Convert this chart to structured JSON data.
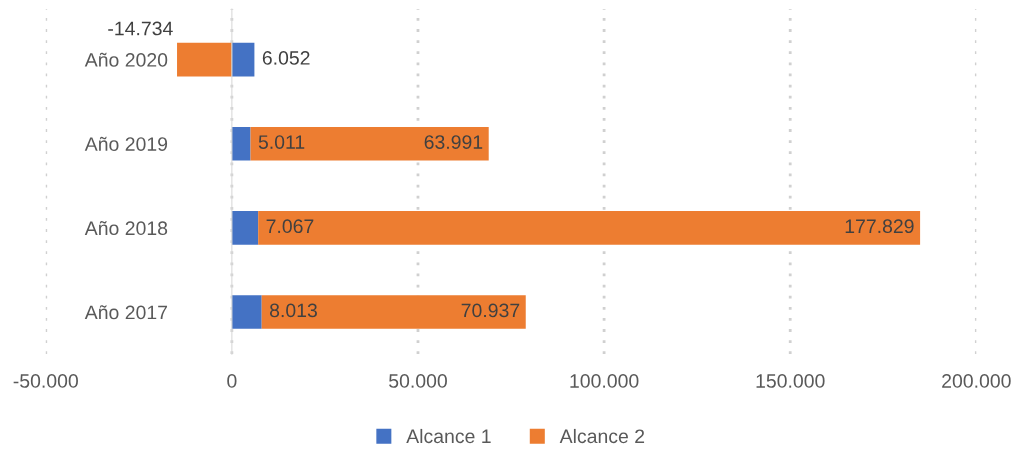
{
  "chart_data": {
    "type": "bar",
    "orientation": "horizontal",
    "stacked": true,
    "categories": [
      "Año 2020",
      "Año 2019",
      "Año 2018",
      "Año 2017"
    ],
    "series": [
      {
        "name": "Alcance 1",
        "color": "#4472c4",
        "values": [
          6052,
          5011,
          7067,
          8013
        ],
        "value_labels": [
          "6.052",
          "5.011",
          "7.067",
          "8.013"
        ]
      },
      {
        "name": "Alcance 2",
        "color": "#ed7d31",
        "values": [
          -14734,
          63991,
          177829,
          70937
        ],
        "value_labels": [
          "-14.734",
          "63.991",
          "177.829",
          "70.937"
        ]
      }
    ],
    "xlim": [
      -50000,
      200000
    ],
    "xticks": [
      {
        "value": -50000,
        "label": "-50.000"
      },
      0,
      {
        "value": 50000,
        "label": "50.000"
      },
      {
        "value": 100000,
        "label": "100.000"
      },
      {
        "value": 150000,
        "label": "150.000"
      },
      {
        "value": 200000,
        "label": "200.000"
      }
    ],
    "grid": "x",
    "legend": "bottom"
  }
}
